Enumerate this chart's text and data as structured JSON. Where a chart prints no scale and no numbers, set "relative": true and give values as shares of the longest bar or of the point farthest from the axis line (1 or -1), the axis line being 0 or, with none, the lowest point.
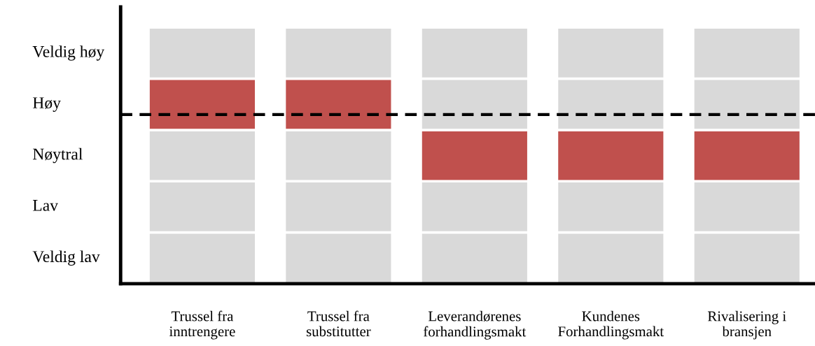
{
  "chart_data": {
    "type": "bar",
    "relative": true,
    "stacked": true,
    "categories": [
      "Trussel fra\ninntrengere",
      "Trussel fra\nsubstitutter",
      "Leverandørenes\nforhandlingsmakt",
      "Kundenes\nForhandlingsmakt",
      "Rivalisering i\nbransjen"
    ],
    "annotations": [
      "Veldig lav",
      "Lav",
      "Nøytral",
      "Høy",
      "Veldig høy"
    ],
    "series": [
      {
        "colors": [
          "#d9d9d9",
          "#d9d9d9",
          "#d9d9d9",
          "#d9d9d9",
          "#d9d9d9"
        ],
        "values": [
          0.2,
          0.2,
          0.2,
          0.2,
          0.2
        ]
      },
      {
        "colors": [
          "#d9d9d9",
          "#d9d9d9",
          "#d9d9d9",
          "#d9d9d9",
          "#d9d9d9"
        ],
        "values": [
          0.2,
          0.2,
          0.2,
          0.2,
          0.2
        ]
      },
      {
        "colors": [
          "#d9d9d9",
          "#d9d9d9",
          "#c0504d",
          "#c0504d",
          "#c0504d"
        ],
        "values": [
          0.2,
          0.2,
          0.2,
          0.2,
          0.2
        ]
      },
      {
        "colors": [
          "#c0504d",
          "#c0504d",
          "#d9d9d9",
          "#d9d9d9",
          "#d9d9d9"
        ],
        "values": [
          0.2,
          0.2,
          0.2,
          0.2,
          0.2
        ]
      },
      {
        "colors": [
          "#d9d9d9",
          "#d9d9d9",
          "#d9d9d9",
          "#d9d9d9",
          "#d9d9d9"
        ],
        "values": [
          0.2,
          0.2,
          0.2,
          0.2,
          0.2
        ]
      }
    ],
    "ref_lines": [
      {
        "axis": "y",
        "value": 0.66,
        "color": "#000000",
        "line_style": "dashed"
      }
    ]
  }
}
